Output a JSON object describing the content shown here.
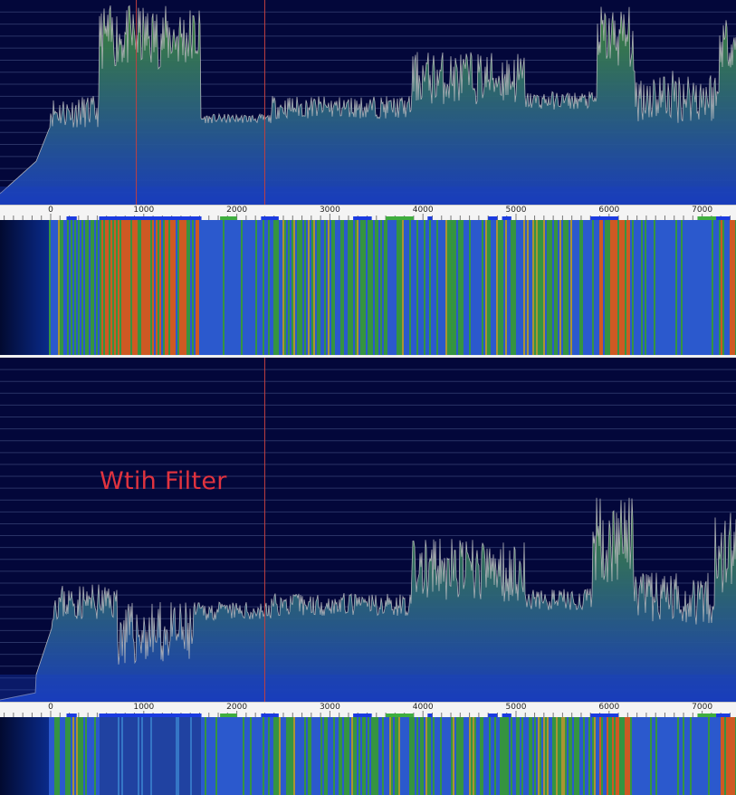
{
  "annotation": {
    "text": "Wtih Filter"
  },
  "ruler": {
    "ticks": [
      "0",
      "1000",
      "2000",
      "3000",
      "4000",
      "5000",
      "6000",
      "7000"
    ],
    "hz_values": [
      0,
      1000,
      2000,
      3000,
      4000,
      5000,
      6000,
      7000
    ]
  },
  "colors": {
    "background": "#03073a",
    "grid": "#2a3366",
    "trace": "#c8c8c8",
    "signal_fill_top": "#3f8a33",
    "signal_fill_bottom": "#1a3fc0",
    "marker": "#c04040",
    "waterfall_hot": "#e06020",
    "waterfall_mid": "#3aa040",
    "waterfall_cold": "#2f5fd8",
    "ruler_bg": "#f4f4f4",
    "ruler_block_blue": "#1b3be0",
    "ruler_block_green": "#3fae3f"
  },
  "top_panel": {
    "markers_hz": [
      920,
      2300
    ]
  },
  "bottom_panel": {
    "markers_hz": [
      2300
    ]
  }
}
